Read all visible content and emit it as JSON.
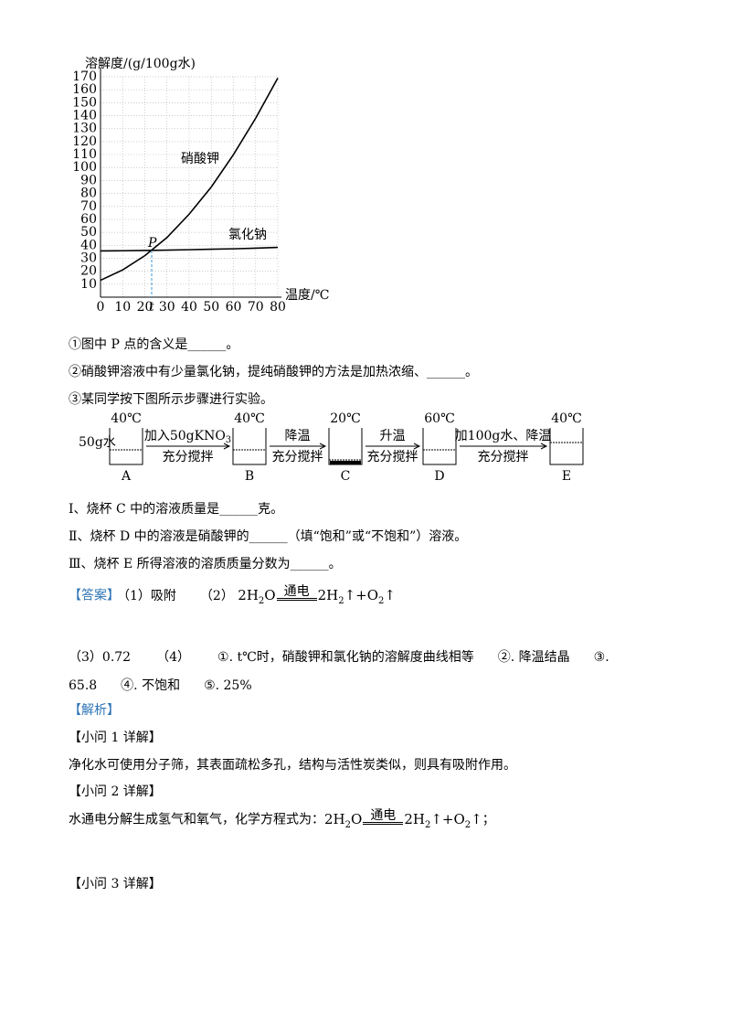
{
  "chart_data": {
    "type": "line",
    "y_label": "溶解度/(g/100g水)",
    "x_label": "温度/℃",
    "x": [
      0,
      10,
      20,
      30,
      40,
      50,
      60,
      70,
      80
    ],
    "series": [
      {
        "name": "硝酸钾",
        "color": "#000000",
        "values": [
          13,
          21,
          32,
          46,
          64,
          85,
          110,
          138,
          169
        ]
      },
      {
        "name": "氯化钠",
        "color": "#000000",
        "values": [
          35.7,
          35.8,
          36,
          36.3,
          36.6,
          37,
          37.3,
          37.8,
          38.4
        ]
      }
    ],
    "xlim": [
      0,
      80
    ],
    "ylim": [
      0,
      170
    ],
    "xticks": [
      0,
      10,
      20,
      30,
      40,
      50,
      60,
      70,
      80
    ],
    "yticks": [
      10,
      20,
      30,
      40,
      50,
      60,
      70,
      80,
      90,
      100,
      110,
      120,
      130,
      140,
      150,
      160,
      170
    ],
    "grid": true,
    "point_label": "P",
    "t_label": "t"
  },
  "questions": {
    "q1": "①图中 P 点的含义是______。",
    "q2": "②硝酸钾溶液中有少量氯化钠，提纯硝酸钾的方法是加热浓缩、______。",
    "q3": "③某同学按下图所示步骤进行实验。",
    "sub": [
      "Ⅰ、烧杯 C 中的溶液质量是______克。",
      "Ⅱ、烧杯 D 中的溶液是硝酸钾的______（填“饱和”或“不饱和”）溶液。",
      "Ⅲ、烧杯 E 所得溶液的溶质质量分数为______。"
    ]
  },
  "experiment": {
    "water": "50g水",
    "beakers": [
      {
        "label": "A",
        "temp": "40℃"
      },
      {
        "label": "B",
        "temp": "40℃"
      },
      {
        "label": "C",
        "temp": "20℃"
      },
      {
        "label": "D",
        "temp": "60℃"
      },
      {
        "label": "E",
        "temp": "40℃"
      }
    ],
    "arrows": [
      {
        "top": [
          "加入50gKNO",
          "3"
        ],
        "bottom": "充分搅拌"
      },
      {
        "top": [
          "降温"
        ],
        "bottom": "充分搅拌"
      },
      {
        "top": [
          "升温"
        ],
        "bottom": "充分搅拌"
      },
      {
        "top": [
          "加100g水、降温"
        ],
        "bottom": "充分搅拌"
      }
    ]
  },
  "answer": {
    "tag": "【答案】",
    "a1": "（1）吸附",
    "a2": "（2）",
    "a3": "（3）0.72",
    "a4": "（4）",
    "items": [
      "①. t℃时，硝酸钾和氯化钠的溶解度曲线相等",
      "②. 降温结晶",
      "③. 65.8",
      "④. 不饱和",
      "⑤. 25%"
    ]
  },
  "equation": {
    "condition": "通电",
    "lhs": [
      "2H",
      "2",
      "O"
    ],
    "rhs": [
      "2H",
      "2",
      "↑+O",
      "2",
      "↑"
    ]
  },
  "analysis": {
    "tag": "【解析】",
    "h1": "【小问 1 详解】",
    "t1": "净化水可使用分子筛，其表面疏松多孔，结构与活性炭类似，则具有吸附作用。",
    "h2": "【小问 2 详解】",
    "t2": "水通电分解生成氢气和氧气，化学方程式为：",
    "t2_end": "；",
    "h3": "【小问 3 详解】"
  }
}
